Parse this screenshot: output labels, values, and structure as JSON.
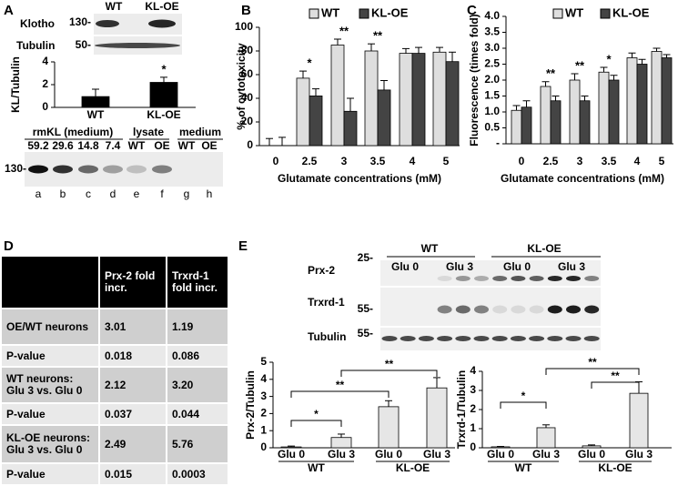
{
  "panel_labels": [
    "A",
    "B",
    "C",
    "D",
    "E"
  ],
  "blots": {
    "panel_a_top": {
      "groups": [
        "WT",
        "KL-OE"
      ],
      "rows": [
        {
          "name": "Klotho",
          "marker": "130-"
        },
        {
          "name": "Tubulin",
          "marker": "50-"
        }
      ]
    },
    "panel_a_bottom": {
      "groups": [
        "rmKL (medium)",
        "lysate",
        "medium"
      ],
      "lane_amounts": [
        59.2,
        29.6,
        14.8,
        7.4,
        "WT",
        "OE",
        "WT",
        "OE"
      ],
      "lanes": [
        "a",
        "b",
        "c",
        "d",
        "e",
        "f",
        "g",
        "h"
      ],
      "marker": "130-"
    },
    "panel_e": {
      "groups": [
        "WT",
        "KL-OE"
      ],
      "lanes": [
        "Glu 0",
        "Glu 3",
        "Glu 0",
        "Glu 3"
      ],
      "rows": [
        {
          "name": "Prx-2",
          "marker": "25-"
        },
        {
          "name": "Trxrd-1",
          "marker": "55-"
        },
        {
          "name": "Tubulin",
          "marker": "55-"
        }
      ]
    }
  },
  "chart_data": [
    {
      "type": "bar",
      "ylabel": "KL/Tubulin",
      "categories": [
        "WT",
        "KL-OE"
      ],
      "values": [
        0.95,
        2.2
      ],
      "errors": [
        0.65,
        0.45
      ],
      "color": "#000000",
      "significance": [
        null,
        "*"
      ],
      "ylim": [
        0,
        4
      ],
      "yticks": [
        0,
        2,
        4
      ]
    },
    {
      "type": "bar",
      "ylabel": "% of cytotoxicity",
      "xlabel": "Glutamate concentrations (mM)",
      "categories": [
        "0",
        "2.5",
        "3",
        "3.5",
        "4",
        "5"
      ],
      "series": [
        {
          "name": "WT",
          "color": "#dedede",
          "values": [
            0,
            57,
            85,
            80,
            78,
            79
          ],
          "errors": [
            6,
            6,
            5,
            6,
            4,
            4
          ]
        },
        {
          "name": "KL-OE",
          "color": "#444444",
          "values": [
            0,
            42,
            29,
            47,
            78,
            71
          ],
          "errors": [
            7,
            6,
            11,
            8,
            5,
            8
          ]
        }
      ],
      "significance": [
        null,
        "*",
        "**",
        "**",
        null,
        null
      ],
      "legend": true,
      "ylim": [
        0,
        100
      ],
      "yticks": [
        0,
        20,
        40,
        60,
        80,
        100
      ]
    },
    {
      "type": "bar",
      "ylabel": "Fluorescence (times fold)",
      "xlabel": "Glutamate concentrations (mM)",
      "categories": [
        "0",
        "2.5",
        "3",
        "3.5",
        "4",
        "5"
      ],
      "series": [
        {
          "name": "WT",
          "color": "#dedede",
          "values": [
            1.05,
            1.8,
            2.0,
            2.25,
            2.7,
            2.9
          ],
          "errors": [
            0.15,
            0.15,
            0.2,
            0.15,
            0.15,
            0.1
          ]
        },
        {
          "name": "KL-OE",
          "color": "#444444",
          "values": [
            1.15,
            1.35,
            1.35,
            2.0,
            2.5,
            2.7
          ],
          "errors": [
            0.2,
            0.15,
            0.15,
            0.15,
            0.15,
            0.1
          ]
        }
      ],
      "significance": [
        null,
        "**",
        "**",
        "*",
        null,
        null
      ],
      "legend": true,
      "ylim": [
        0,
        4
      ],
      "yticks": [
        {
          "value": 0,
          "label": "-"
        },
        0.5,
        {
          "value": 1,
          "label": "1.0"
        },
        1.5,
        {
          "value": 2,
          "label": "2.0"
        },
        2.5,
        {
          "value": 3,
          "label": "3.0"
        },
        3.5,
        {
          "value": 4,
          "label": "4.0"
        }
      ]
    },
    {
      "type": "bar",
      "ylabel": "Prx-2/Tubulin",
      "categories": [
        "Glu 0",
        "Glu 3",
        "Glu 0",
        "Glu 3"
      ],
      "groups": [
        "WT",
        "KL-OE"
      ],
      "values": [
        0.05,
        0.6,
        2.4,
        3.5
      ],
      "errors": [
        0.05,
        0.2,
        0.35,
        0.6
      ],
      "color": "#e6e6e6",
      "significance": [
        "*",
        "**",
        "**"
      ],
      "ylim": [
        0,
        5
      ],
      "yticks": [
        0,
        1,
        2,
        3,
        4,
        5
      ]
    },
    {
      "type": "bar",
      "ylabel": "Trxrd-1/Tubulin",
      "categories": [
        "Glu 0",
        "Glu 3",
        "Glu 0",
        "Glu 3"
      ],
      "groups": [
        "WT",
        "KL-OE"
      ],
      "values": [
        0.05,
        1.05,
        0.1,
        2.85
      ],
      "errors": [
        0.02,
        0.15,
        0.05,
        0.6
      ],
      "color": "#e6e6e6",
      "significance": [
        "*",
        "**",
        "**"
      ],
      "ylim": [
        0,
        4
      ],
      "yticks": [
        0,
        1,
        2,
        3,
        4
      ]
    }
  ],
  "table": {
    "header": [
      "Prx-2 fold incr.",
      "Trxrd-1 fold incr."
    ],
    "rows": [
      [
        "OE/WT neurons",
        3.01,
        1.19
      ],
      [
        "P-value",
        0.018,
        0.086
      ],
      [
        "WT neurons: Glu 3 vs. Glu 0",
        2.12,
        "3.20"
      ],
      [
        "P-value",
        0.037,
        0.044
      ],
      [
        "KL-OE neurons: Glu 3 vs. Glu 0",
        2.49,
        5.76
      ],
      [
        "P-value",
        0.015,
        0.0003
      ]
    ]
  }
}
